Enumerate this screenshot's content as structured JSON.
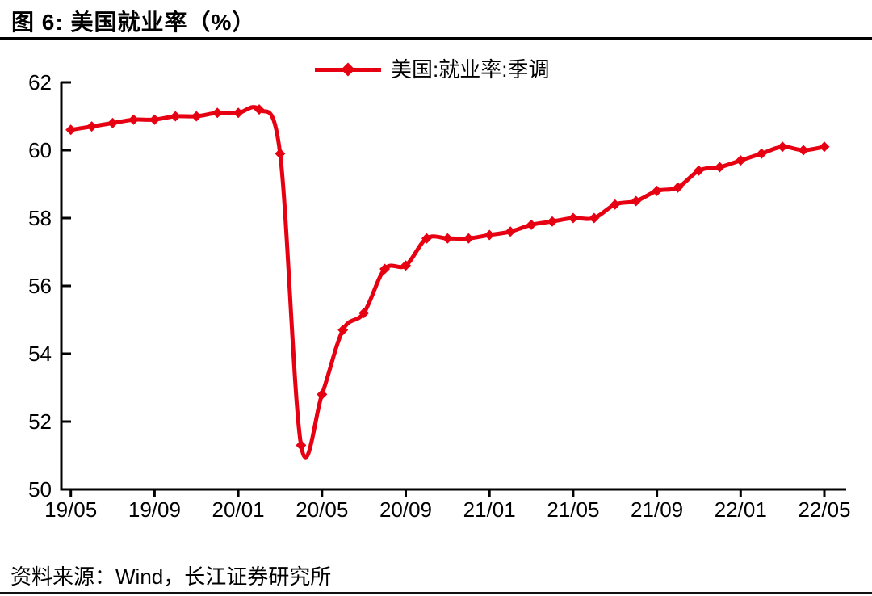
{
  "header": {
    "title": "图 6: 美国就业率（%）"
  },
  "footer": {
    "source": "资料来源：Wind，长江证券研究所"
  },
  "chart_data": {
    "type": "line",
    "title": "美国就业率（%）",
    "legend_position": "top-center",
    "grid": false,
    "axis_color": "#000000",
    "ylim": [
      50,
      62
    ],
    "y_ticks": [
      50,
      52,
      54,
      56,
      58,
      60,
      62
    ],
    "x": [
      "19/05",
      "19/06",
      "19/07",
      "19/08",
      "19/09",
      "19/10",
      "19/11",
      "19/12",
      "20/01",
      "20/02",
      "20/03",
      "20/04",
      "20/05",
      "20/06",
      "20/07",
      "20/08",
      "20/09",
      "20/10",
      "20/11",
      "20/12",
      "21/01",
      "21/02",
      "21/03",
      "21/04",
      "21/05",
      "21/06",
      "21/07",
      "21/08",
      "21/09",
      "21/10",
      "21/11",
      "21/12",
      "22/01",
      "22/02",
      "22/03",
      "22/04",
      "22/05"
    ],
    "x_tick_labels": [
      "19/05",
      "19/09",
      "20/01",
      "20/05",
      "20/09",
      "21/01",
      "21/05",
      "21/09",
      "22/01",
      "22/05"
    ],
    "series": [
      {
        "name": "美国:就业率:季调",
        "color": "#e60012",
        "marker": "diamond",
        "values": [
          60.6,
          60.7,
          60.8,
          60.9,
          60.9,
          61.0,
          61.0,
          61.1,
          61.1,
          61.2,
          59.9,
          51.3,
          52.8,
          54.7,
          55.2,
          56.5,
          56.6,
          57.4,
          57.4,
          57.4,
          57.5,
          57.6,
          57.8,
          57.9,
          58.0,
          58.0,
          58.4,
          58.5,
          58.8,
          58.9,
          59.4,
          59.5,
          59.7,
          59.9,
          60.1,
          60.0,
          60.1
        ]
      }
    ]
  }
}
